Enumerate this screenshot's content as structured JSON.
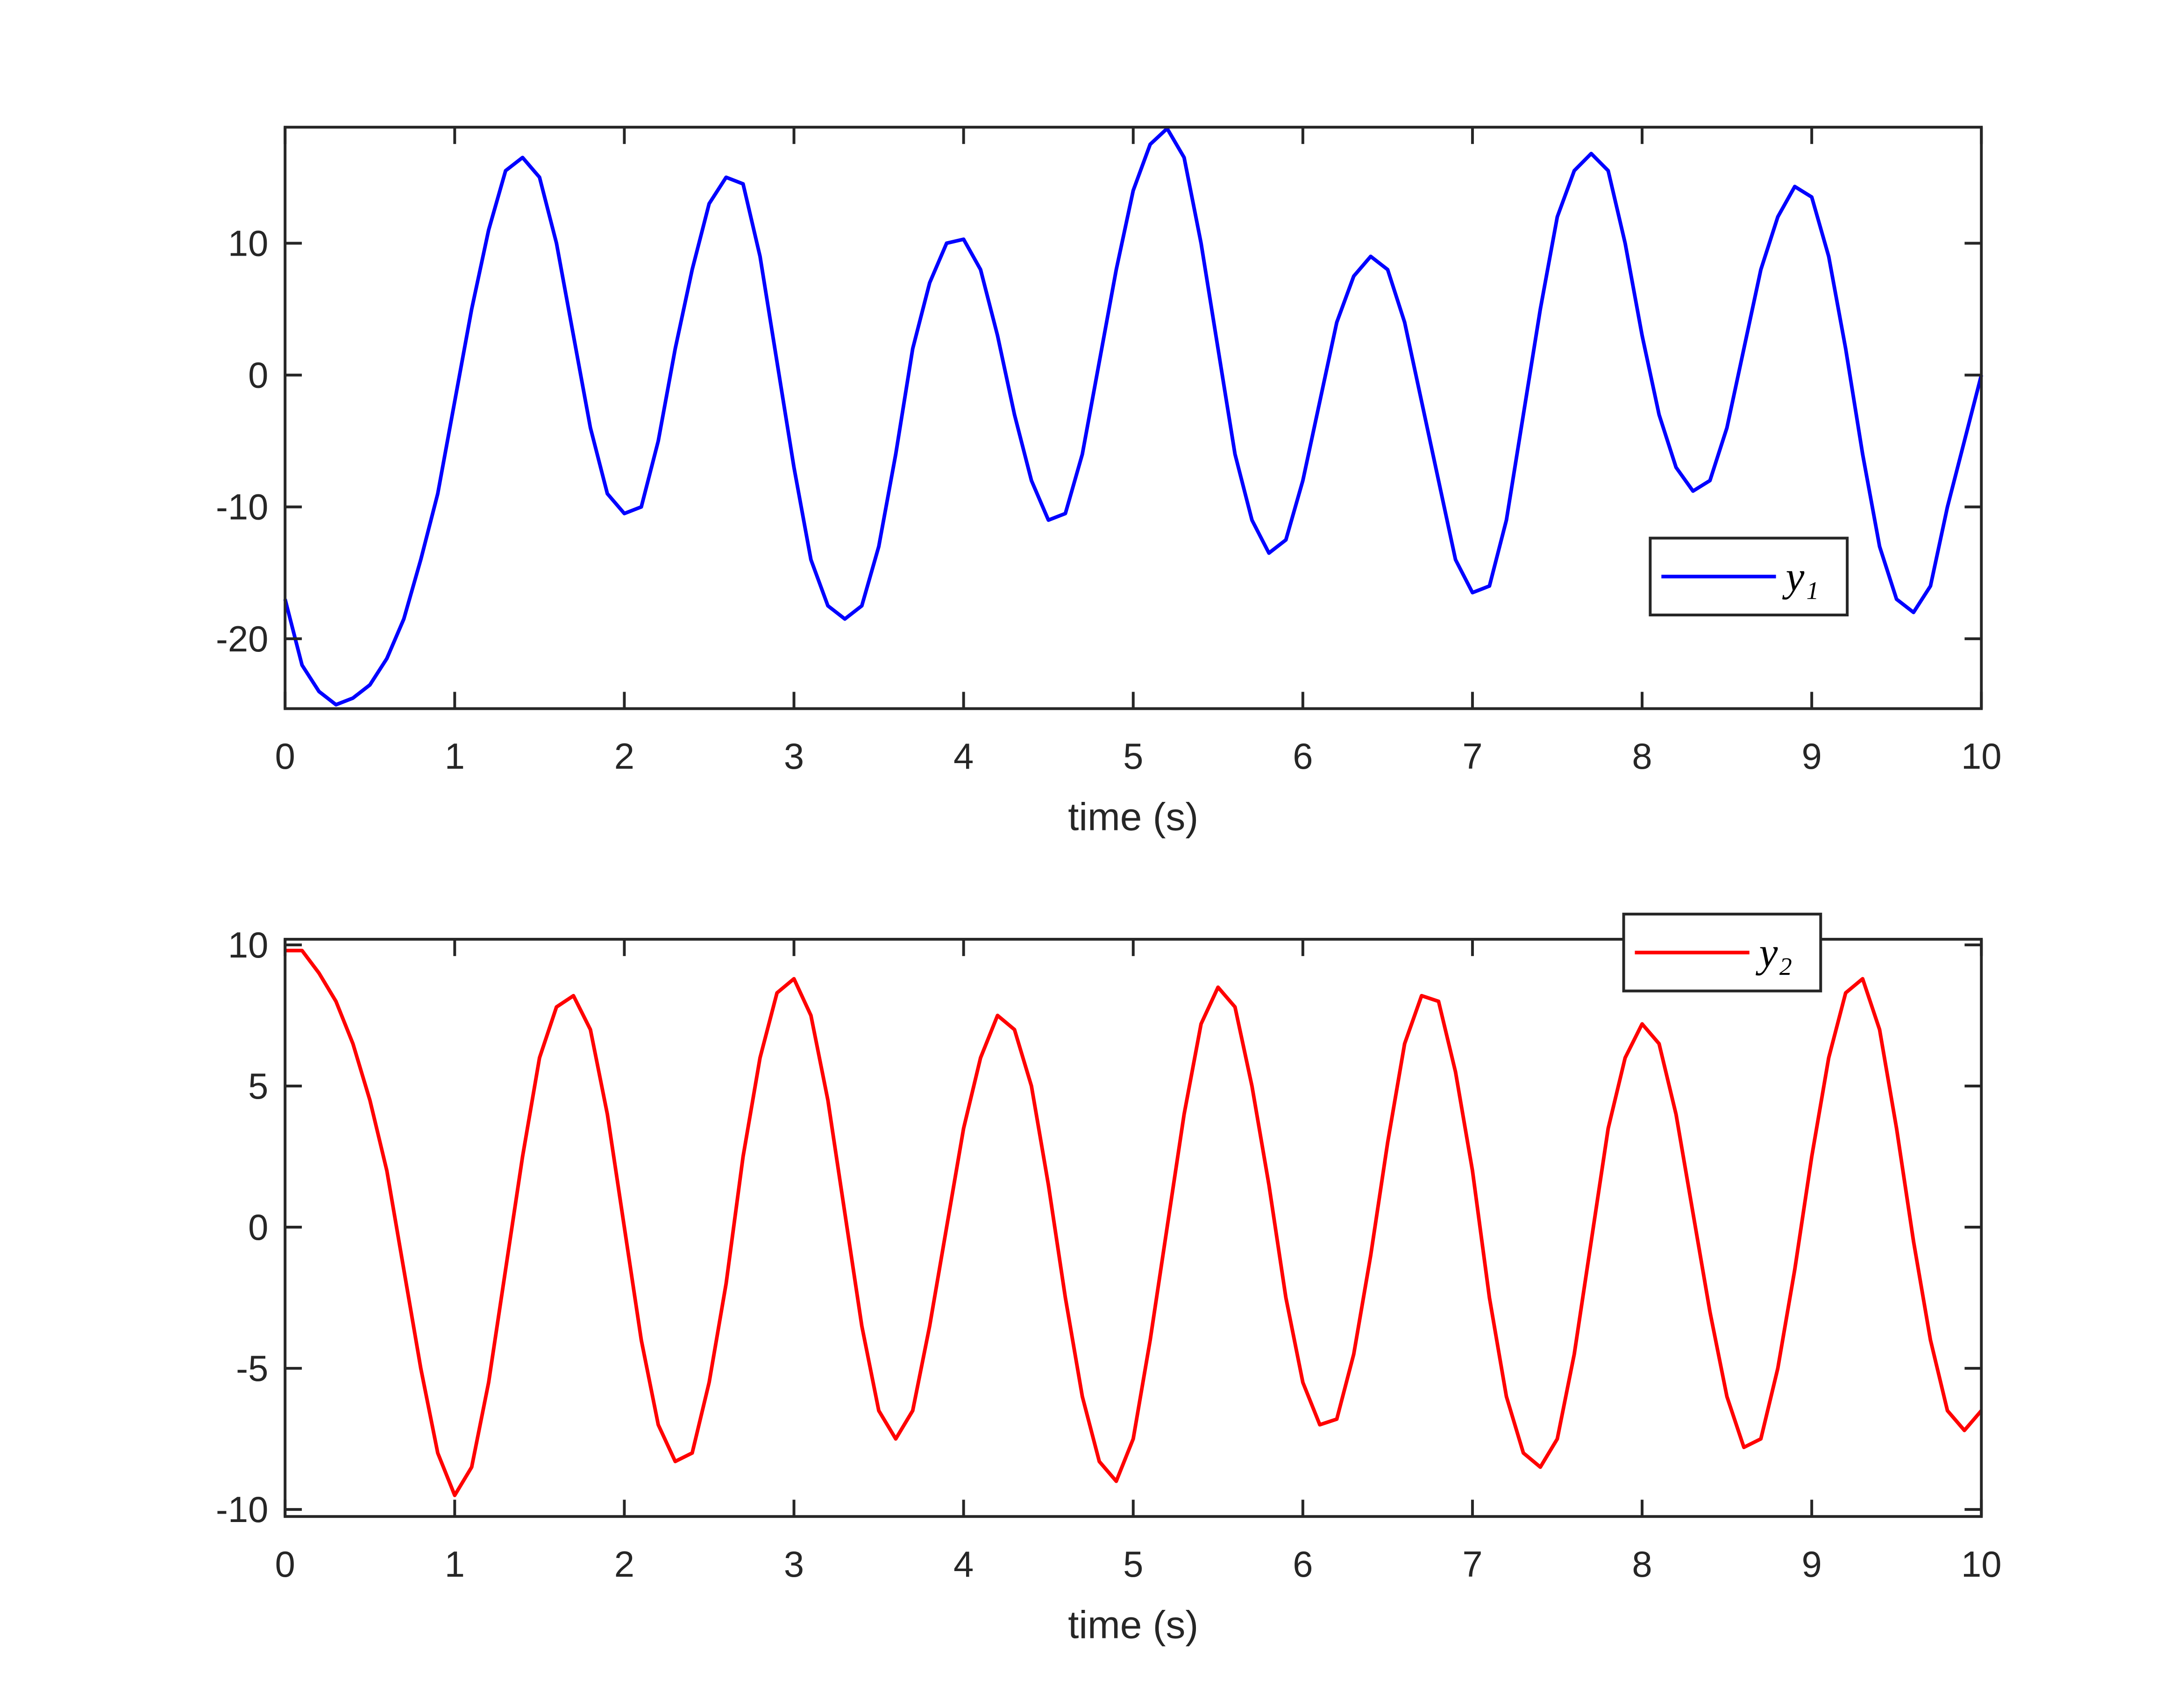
{
  "chart_data": [
    {
      "type": "line",
      "xlabel": "time (s)",
      "x": [
        0,
        0.1,
        0.2,
        0.3,
        0.4,
        0.5,
        0.6,
        0.7,
        0.8,
        0.9,
        1,
        1.1,
        1.2,
        1.3,
        1.4,
        1.5,
        1.6,
        1.7,
        1.8,
        1.9,
        2,
        2.1,
        2.2,
        2.3,
        2.4,
        2.5,
        2.6,
        2.7,
        2.8,
        2.9,
        3,
        3.1,
        3.2,
        3.3,
        3.4,
        3.5,
        3.6,
        3.7,
        3.8,
        3.9,
        4,
        4.1,
        4.2,
        4.3,
        4.4,
        4.5,
        4.6,
        4.7,
        4.8,
        4.9,
        5,
        5.1,
        5.2,
        5.3,
        5.4,
        5.5,
        5.6,
        5.7,
        5.8,
        5.9,
        6,
        6.1,
        6.2,
        6.3,
        6.4,
        6.5,
        6.6,
        6.7,
        6.8,
        6.9,
        7,
        7.1,
        7.2,
        7.3,
        7.4,
        7.5,
        7.6,
        7.7,
        7.8,
        7.9,
        8,
        8.1,
        8.2,
        8.3,
        8.4,
        8.5,
        8.6,
        8.7,
        8.8,
        8.9,
        9,
        9.1,
        9.2,
        9.3,
        9.4,
        9.5,
        9.6,
        9.7,
        9.8,
        9.9,
        10
      ],
      "series": [
        {
          "name": "y₁",
          "color": "#0000ff",
          "values": [
            -17,
            -22,
            -24,
            -25,
            -24.5,
            -23.5,
            -21.5,
            -18.5,
            -14,
            -9,
            -2,
            5,
            11,
            15.5,
            16.5,
            15,
            10,
            3,
            -4,
            -9,
            -10.5,
            -10,
            -5,
            2,
            8,
            13,
            15,
            14.5,
            9,
            1,
            -7,
            -14,
            -17.5,
            -18.5,
            -17.5,
            -13,
            -6,
            2,
            7,
            10,
            10.3,
            8,
            3,
            -3,
            -8,
            -11,
            -10.5,
            -6,
            1,
            8,
            14,
            17.5,
            18.7,
            16.5,
            10,
            2,
            -6,
            -11,
            -13.5,
            -12.5,
            -8,
            -2,
            4,
            7.5,
            9,
            8,
            4,
            -2,
            -8,
            -14,
            -16.5,
            -16,
            -11,
            -3,
            5,
            12,
            15.5,
            16.8,
            15.5,
            10,
            3,
            -3,
            -7,
            -8.8,
            -8,
            -4,
            2,
            8,
            12,
            14.3,
            13.5,
            9,
            2,
            -6,
            -13,
            -17,
            -18,
            -16,
            -10,
            -5,
            0
          ]
        }
      ],
      "xlim": [
        0,
        10
      ],
      "xticks": [
        0,
        1,
        2,
        3,
        4,
        5,
        6,
        7,
        8,
        9,
        10
      ],
      "ylim": [
        -25.3,
        18.8
      ],
      "yticks": [
        -20,
        -10,
        0,
        10
      ],
      "legend": "southeast"
    },
    {
      "type": "line",
      "xlabel": "time (s)",
      "x": [
        0,
        0.1,
        0.2,
        0.3,
        0.4,
        0.5,
        0.6,
        0.7,
        0.8,
        0.9,
        1,
        1.1,
        1.2,
        1.3,
        1.4,
        1.5,
        1.6,
        1.7,
        1.8,
        1.9,
        2,
        2.1,
        2.2,
        2.3,
        2.4,
        2.5,
        2.6,
        2.7,
        2.8,
        2.9,
        3,
        3.1,
        3.2,
        3.3,
        3.4,
        3.5,
        3.6,
        3.7,
        3.8,
        3.9,
        4,
        4.1,
        4.2,
        4.3,
        4.4,
        4.5,
        4.6,
        4.7,
        4.8,
        4.9,
        5,
        5.1,
        5.2,
        5.3,
        5.4,
        5.5,
        5.6,
        5.7,
        5.8,
        5.9,
        6,
        6.1,
        6.2,
        6.3,
        6.4,
        6.5,
        6.6,
        6.7,
        6.8,
        6.9,
        7,
        7.1,
        7.2,
        7.3,
        7.4,
        7.5,
        7.6,
        7.7,
        7.8,
        7.9,
        8,
        8.1,
        8.2,
        8.3,
        8.4,
        8.5,
        8.6,
        8.7,
        8.8,
        8.9,
        9,
        9.1,
        9.2,
        9.3,
        9.4,
        9.5,
        9.6,
        9.7,
        9.8,
        9.9,
        10
      ],
      "series": [
        {
          "name": "y₂",
          "color": "#ff0000",
          "values": [
            9.8,
            9.8,
            9,
            8,
            6.5,
            4.5,
            2,
            -1.5,
            -5,
            -8,
            -9.5,
            -8.5,
            -5.5,
            -1.5,
            2.5,
            6,
            7.8,
            8.2,
            7,
            4,
            0,
            -4,
            -7,
            -8.3,
            -8,
            -5.5,
            -2,
            2.5,
            6,
            8.3,
            8.8,
            7.5,
            4.5,
            0.5,
            -3.5,
            -6.5,
            -7.5,
            -6.5,
            -3.5,
            0,
            3.5,
            6,
            7.5,
            7,
            5,
            1.5,
            -2.5,
            -6,
            -8.3,
            -9,
            -7.5,
            -4,
            0,
            4,
            7.2,
            8.5,
            7.8,
            5,
            1.5,
            -2.5,
            -5.5,
            -7,
            -6.8,
            -4.5,
            -1,
            3,
            6.5,
            8.2,
            8,
            5.5,
            2,
            -2.5,
            -6,
            -8,
            -8.5,
            -7.5,
            -4.5,
            -0.5,
            3.5,
            6,
            7.2,
            6.5,
            4,
            0.5,
            -3,
            -6,
            -7.8,
            -7.5,
            -5,
            -1.5,
            2.5,
            6,
            8.3,
            8.8,
            7,
            3.5,
            -0.5,
            -4,
            -6.5,
            -7.2,
            -6.5
          ]
        }
      ],
      "xlim": [
        0,
        10
      ],
      "xticks": [
        0,
        1,
        2,
        3,
        4,
        5,
        6,
        7,
        8,
        9,
        10
      ],
      "ylim": [
        -10.25,
        10.2
      ],
      "yticks": [
        -10,
        -5,
        0,
        5,
        10
      ],
      "legend": "northeast"
    }
  ]
}
